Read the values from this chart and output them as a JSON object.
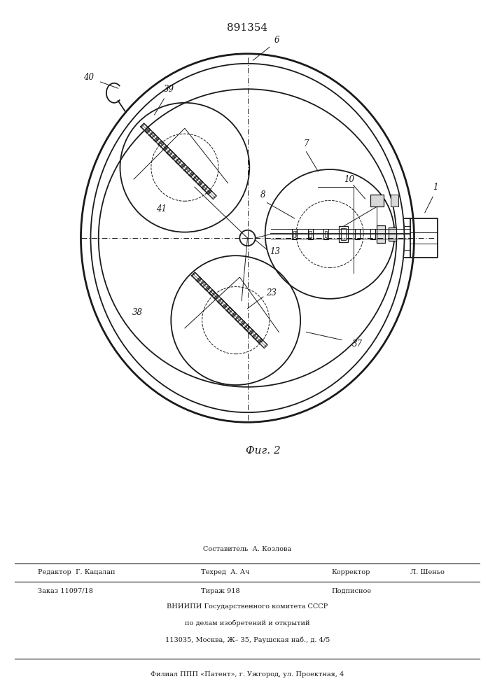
{
  "patent_number": "891354",
  "background": "#ffffff",
  "line_color": "#1a1a1a",
  "fig_caption": "Фиг. 2",
  "footer": {
    "row0": "Составитель  А. Козлова",
    "editor": "Редактор  Г. Кацалап",
    "tehred": "Техред  А. Ач",
    "correct_label": "Корректор",
    "correct_val": "Л. Шеньо",
    "zakaz": "Заказ 11097/18",
    "tirazh": "Тираж 918",
    "podpis": "Подписное",
    "vniip1": "ВНИИПИ Государственного комитета СССР",
    "vniip2": "по делам изобретений и открытий",
    "vniip3": "113035, Москва, Ж– 35, Раушская наб., д. 4/5",
    "filial": "Филиал ППП «Патент», г. Ужгород, ул. Проектная, 4"
  }
}
